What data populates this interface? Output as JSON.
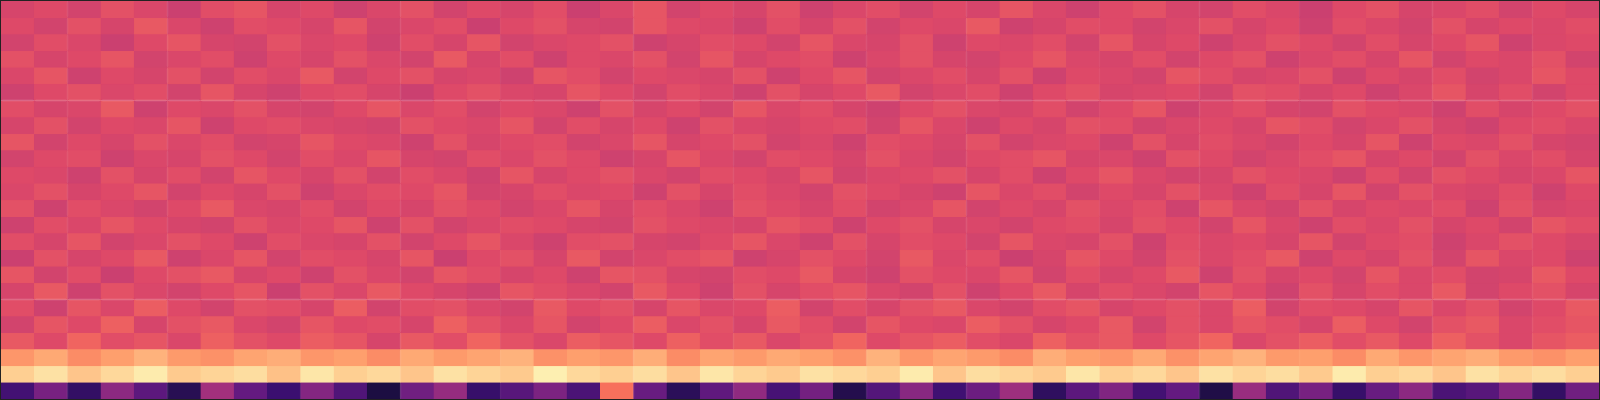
{
  "chart_data": {
    "type": "heatmap",
    "tick_labels": false,
    "grid": false,
    "color_range": [
      0,
      100
    ],
    "cells": [
      [
        58,
        60,
        57,
        62,
        59,
        55,
        61,
        63,
        58,
        60,
        56,
        59,
        62,
        57,
        60,
        58,
        61,
        55,
        59,
        63,
        57,
        60,
        58,
        62,
        56,
        59,
        61,
        57,
        60,
        58,
        63,
        59,
        56,
        60,
        62,
        58,
        57,
        61,
        59,
        55,
        60,
        62,
        58,
        59,
        61,
        57,
        60,
        58
      ],
      [
        60,
        57,
        62,
        58,
        64,
        59,
        56,
        61,
        60,
        58,
        63,
        57,
        59,
        61,
        55,
        60,
        62,
        58,
        57,
        63,
        60,
        59,
        56,
        61,
        58,
        62,
        57,
        60,
        59,
        64,
        56,
        58,
        61,
        60,
        57,
        59,
        62,
        58,
        60,
        56,
        61,
        59,
        57,
        62,
        58,
        60,
        59,
        61
      ],
      [
        57,
        61,
        59,
        55,
        60,
        63,
        58,
        57,
        62,
        59,
        60,
        56,
        61,
        58,
        63,
        57,
        59,
        60,
        62,
        56,
        58,
        61,
        60,
        57,
        63,
        59,
        58,
        62,
        56,
        60,
        59,
        61,
        57,
        63,
        58,
        60,
        56,
        59,
        62,
        60,
        57,
        61,
        58,
        60,
        63,
        56,
        59,
        60
      ],
      [
        62,
        58,
        60,
        63,
        57,
        59,
        61,
        56,
        60,
        58,
        62,
        59,
        57,
        64,
        58,
        61,
        56,
        60,
        59,
        62,
        57,
        63,
        58,
        60,
        61,
        56,
        59,
        62,
        58,
        57,
        60,
        63,
        59,
        58,
        61,
        57,
        60,
        62,
        56,
        59,
        61,
        58,
        63,
        57,
        60,
        59,
        62,
        57
      ],
      [
        59,
        63,
        56,
        60,
        58,
        62,
        57,
        61,
        59,
        64,
        57,
        60,
        62,
        58,
        59,
        56,
        63,
        61,
        57,
        60,
        59,
        58,
        62,
        56,
        60,
        63,
        57,
        59,
        61,
        58,
        62,
        56,
        60,
        59,
        57,
        63,
        61,
        58,
        59,
        62,
        56,
        60,
        58,
        61,
        57,
        59,
        63,
        60
      ],
      [
        56,
        60,
        62,
        59,
        61,
        57,
        63,
        58,
        56,
        60,
        61,
        58,
        55,
        60,
        62,
        59,
        58,
        63,
        60,
        57,
        61,
        59,
        56,
        62,
        58,
        60,
        64,
        57,
        59,
        61,
        56,
        60,
        62,
        58,
        59,
        60,
        57,
        62,
        61,
        58,
        60,
        56,
        59,
        63,
        58,
        61,
        57,
        60
      ],
      [
        61,
        58,
        59,
        64,
        56,
        60,
        59,
        62,
        58,
        57,
        60,
        63,
        59,
        61,
        57,
        60,
        59,
        56,
        62,
        58,
        60,
        57,
        63,
        59,
        61,
        58,
        56,
        60,
        62,
        59,
        58,
        61,
        57,
        60,
        63,
        56,
        59,
        61,
        58,
        57,
        62,
        60,
        59,
        56,
        61,
        58,
        60,
        62
      ],
      [
        58,
        62,
        57,
        60,
        59,
        63,
        56,
        60,
        61,
        59,
        58,
        57,
        62,
        60,
        59,
        63,
        57,
        61,
        58,
        60,
        56,
        62,
        59,
        58,
        60,
        61,
        57,
        63,
        59,
        56,
        60,
        58,
        62,
        61,
        57,
        59,
        60,
        58,
        63,
        61,
        57,
        59,
        62,
        58,
        56,
        60,
        61,
        59
      ],
      [
        63,
        57,
        60,
        58,
        62,
        59,
        61,
        57,
        58,
        63,
        60,
        59,
        56,
        62,
        58,
        60,
        61,
        57,
        59,
        63,
        58,
        60,
        62,
        57,
        59,
        56,
        61,
        60,
        58,
        62,
        57,
        59,
        60,
        56,
        62,
        58,
        61,
        59,
        57,
        60,
        58,
        63,
        56,
        60,
        59,
        62,
        58,
        57
      ],
      [
        57,
        60,
        61,
        56,
        59,
        58,
        62,
        60,
        57,
        61,
        59,
        63,
        58,
        57,
        61,
        59,
        62,
        60,
        56,
        58,
        63,
        59,
        57,
        61,
        60,
        58,
        62,
        59,
        57,
        60,
        61,
        63,
        58,
        59,
        56,
        62,
        60,
        57,
        59,
        61,
        63,
        58,
        60,
        57,
        62,
        59,
        61,
        58
      ],
      [
        60,
        59,
        56,
        62,
        58,
        61,
        57,
        63,
        60,
        58,
        62,
        57,
        61,
        59,
        56,
        63,
        58,
        60,
        62,
        59,
        57,
        61,
        60,
        58,
        63,
        57,
        59,
        60,
        62,
        58,
        61,
        56,
        60,
        63,
        59,
        57,
        58,
        62,
        60,
        59,
        56,
        61,
        57,
        62,
        60,
        58,
        59,
        63
      ],
      [
        59,
        62,
        58,
        60,
        63,
        57,
        60,
        58,
        62,
        56,
        59,
        61,
        60,
        63,
        57,
        58,
        61,
        59,
        60,
        56,
        62,
        58,
        61,
        59,
        57,
        62,
        60,
        58,
        56,
        63,
        59,
        61,
        57,
        60,
        58,
        62,
        59,
        56,
        61,
        58,
        63,
        57,
        62,
        59,
        58,
        61,
        56,
        60
      ],
      [
        62,
        56,
        61,
        59,
        57,
        60,
        64,
        59,
        58,
        61,
        57,
        60,
        58,
        62,
        60,
        57,
        59,
        63,
        58,
        61,
        59,
        56,
        62,
        60,
        58,
        61,
        57,
        59,
        63,
        57,
        60,
        58,
        62,
        59,
        61,
        56,
        63,
        59,
        57,
        62,
        58,
        60,
        59,
        61,
        56,
        62,
        58,
        59
      ],
      [
        56,
        61,
        59,
        63,
        60,
        58,
        57,
        62,
        59,
        60,
        63,
        56,
        62,
        57,
        59,
        61,
        60,
        58,
        57,
        62,
        60,
        59,
        58,
        63,
        61,
        56,
        60,
        62,
        58,
        59,
        57,
        60,
        61,
        58,
        62,
        60,
        57,
        63,
        59,
        56,
        61,
        59,
        62,
        58,
        60,
        57,
        63,
        61
      ],
      [
        61,
        58,
        63,
        57,
        59,
        62,
        60,
        56,
        61,
        59,
        58,
        62,
        57,
        60,
        63,
        59,
        56,
        61,
        62,
        58,
        57,
        60,
        63,
        59,
        56,
        62,
        58,
        61,
        60,
        57,
        63,
        59,
        58,
        62,
        56,
        61,
        59,
        60,
        58,
        63,
        57,
        60,
        61,
        56,
        59,
        62,
        60,
        58
      ],
      [
        55,
        62,
        58,
        60,
        64,
        56,
        59,
        63,
        57,
        61,
        60,
        58,
        63,
        55,
        60,
        62,
        58,
        64,
        57,
        59,
        61,
        63,
        56,
        58,
        62,
        60,
        57,
        64,
        59,
        61,
        55,
        58,
        63,
        60,
        57,
        62,
        59,
        61,
        64,
        56,
        60,
        58,
        62,
        57,
        63,
        59,
        60,
        56
      ],
      [
        63,
        57,
        61,
        55,
        60,
        62,
        64,
        58,
        60,
        56,
        62,
        59,
        57,
        63,
        61,
        58,
        60,
        56,
        63,
        62,
        58,
        57,
        61,
        60,
        64,
        58,
        56,
        62,
        60,
        59,
        63,
        57,
        61,
        58,
        60,
        64,
        56,
        62,
        58,
        60,
        57,
        63,
        59,
        61,
        57,
        58,
        64,
        60
      ],
      [
        58,
        64,
        56,
        62,
        59,
        57,
        60,
        63,
        55,
        62,
        59,
        64,
        60,
        58,
        56,
        63,
        61,
        59,
        57,
        64,
        60,
        56,
        62,
        58,
        61,
        63,
        59,
        57,
        62,
        56,
        60,
        64,
        58,
        61,
        59,
        57,
        63,
        60,
        56,
        62,
        58,
        61,
        59,
        64,
        57,
        60,
        62,
        58
      ],
      [
        61,
        56,
        63,
        59,
        65,
        60,
        57,
        62,
        61,
        58,
        65,
        57,
        61,
        62,
        59,
        57,
        64,
        60,
        62,
        58,
        63,
        59,
        60,
        65,
        57,
        61,
        58,
        62,
        64,
        59,
        57,
        61,
        63,
        58,
        60,
        62,
        59,
        65,
        57,
        61,
        60,
        58,
        63,
        59,
        62,
        57,
        60,
        64
      ],
      [
        57,
        63,
        60,
        66,
        58,
        62,
        64,
        59,
        57,
        63,
        60,
        61,
        58,
        66,
        62,
        59,
        63,
        57,
        60,
        65,
        59,
        62,
        58,
        64,
        61,
        57,
        63,
        60,
        59,
        65,
        62,
        58,
        60,
        64,
        57,
        62,
        59,
        63,
        61,
        58,
        65,
        60,
        57,
        62,
        64,
        59,
        61,
        63
      ],
      [
        64,
        60,
        67,
        61,
        63,
        59,
        66,
        62,
        60,
        65,
        63,
        58,
        64,
        61,
        67,
        62,
        59,
        65,
        63,
        60,
        66,
        61,
        64,
        59,
        62,
        67,
        60,
        63,
        65,
        61,
        59,
        66,
        62,
        64,
        60,
        63,
        67,
        59,
        62,
        65,
        61,
        64,
        60,
        66,
        62,
        59,
        63,
        65
      ],
      [
        78,
        82,
        76,
        80,
        84,
        79,
        77,
        81,
        83,
        78,
        80,
        76,
        82,
        79,
        81,
        84,
        77,
        80,
        78,
        83,
        76,
        81,
        79,
        82,
        80,
        77,
        84,
        78,
        81,
        79,
        76,
        83,
        80,
        78,
        82,
        77,
        81,
        84,
        79,
        80,
        76,
        82,
        78,
        81,
        83,
        79,
        77,
        80
      ],
      [
        90,
        94,
        88,
        92,
        96,
        89,
        91,
        93,
        87,
        95,
        90,
        92,
        88,
        94,
        91,
        89,
        97,
        92,
        90,
        93,
        88,
        95,
        91,
        89,
        94,
        92,
        90,
        96,
        88,
        93,
        91,
        89,
        95,
        90,
        92,
        88,
        94,
        91,
        93,
        89,
        96,
        90,
        92,
        88,
        94,
        91,
        93,
        90
      ],
      [
        22,
        35,
        18,
        40,
        28,
        15,
        45,
        30,
        20,
        38,
        25,
        12,
        33,
        42,
        19,
        27,
        36,
        24,
        70,
        31,
        16,
        29,
        41,
        23,
        34,
        14,
        26,
        39,
        21,
        32,
        44,
        17,
        28,
        37,
        22,
        30,
        13,
        43,
        25,
        35,
        19,
        31,
        40,
        24,
        27,
        38,
        18,
        33
      ]
    ]
  }
}
